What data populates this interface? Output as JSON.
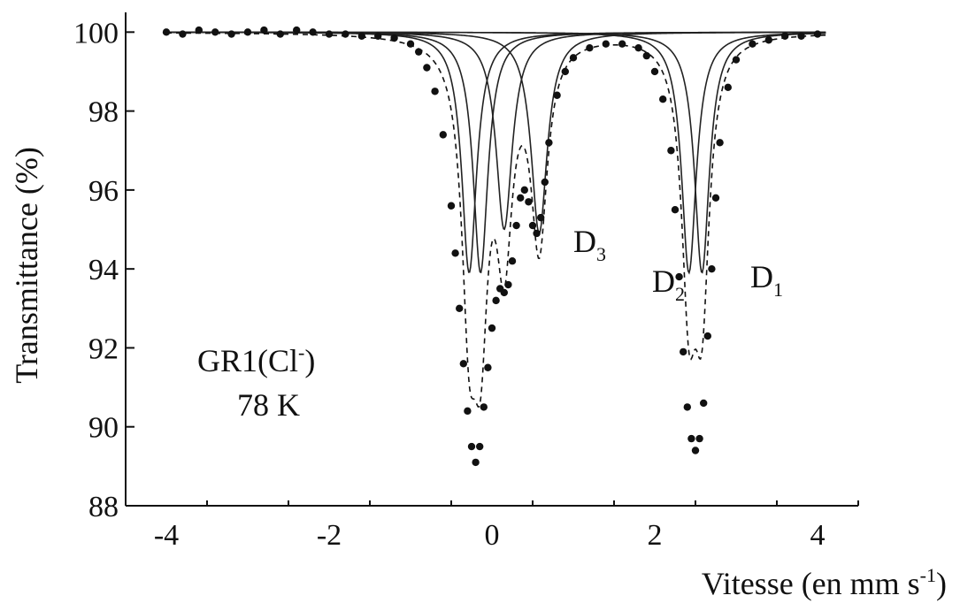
{
  "chart_data": {
    "type": "scatter",
    "xlabel_main": "Vitesse (en mm s",
    "xlabel_sup": "-1",
    "xlabel_close": ")",
    "ylabel": "Transmittance (%)",
    "xlim": [
      -4.5,
      4.5
    ],
    "ylim": [
      88,
      100.5
    ],
    "xticks": [
      -4,
      -2,
      0,
      2,
      4
    ],
    "yticks": [
      88,
      90,
      92,
      94,
      96,
      98,
      100
    ],
    "grid": false,
    "annotations": {
      "sample_main": "GR1(Cl",
      "sample_sup": "-",
      "sample_close": ")",
      "temperature": "78 K",
      "d1_main": "D",
      "d1_sub": "1",
      "d2_main": "D",
      "d2_sub": "2",
      "d3_main": "D",
      "d3_sub": "3"
    },
    "components": [
      {
        "label": "D1",
        "center": 2.58,
        "depth": 6.1,
        "hwhm": 0.11
      },
      {
        "label": "D2",
        "center": 2.42,
        "depth": 6.1,
        "hwhm": 0.11
      },
      {
        "label": "D1",
        "center": -0.14,
        "depth": 6.1,
        "hwhm": 0.11
      },
      {
        "label": "D2",
        "center": -0.28,
        "depth": 6.1,
        "hwhm": 0.11
      },
      {
        "label": "D3",
        "center": 0.15,
        "depth": 5.0,
        "hwhm": 0.12
      },
      {
        "label": "D3",
        "center": 0.58,
        "depth": 5.1,
        "hwhm": 0.12
      }
    ],
    "experimental_points": [
      [
        -4.0,
        100.0
      ],
      [
        -3.8,
        99.95
      ],
      [
        -3.6,
        100.05
      ],
      [
        -3.4,
        100.0
      ],
      [
        -3.2,
        99.95
      ],
      [
        -3.0,
        100.0
      ],
      [
        -2.8,
        100.05
      ],
      [
        -2.6,
        99.95
      ],
      [
        -2.4,
        100.05
      ],
      [
        -2.2,
        100.0
      ],
      [
        -2.0,
        99.95
      ],
      [
        -1.8,
        99.95
      ],
      [
        -1.6,
        99.9
      ],
      [
        -1.4,
        99.9
      ],
      [
        -1.2,
        99.85
      ],
      [
        -1.0,
        99.7
      ],
      [
        -0.9,
        99.5
      ],
      [
        -0.8,
        99.1
      ],
      [
        -0.7,
        98.5
      ],
      [
        -0.6,
        97.4
      ],
      [
        -0.5,
        95.6
      ],
      [
        -0.45,
        94.4
      ],
      [
        -0.4,
        93.0
      ],
      [
        -0.35,
        91.6
      ],
      [
        -0.3,
        90.4
      ],
      [
        -0.25,
        89.5
      ],
      [
        -0.2,
        89.1
      ],
      [
        -0.15,
        89.5
      ],
      [
        -0.1,
        90.5
      ],
      [
        -0.05,
        91.5
      ],
      [
        0.0,
        92.5
      ],
      [
        0.05,
        93.2
      ],
      [
        0.1,
        93.5
      ],
      [
        0.15,
        93.4
      ],
      [
        0.2,
        93.6
      ],
      [
        0.25,
        94.2
      ],
      [
        0.3,
        95.1
      ],
      [
        0.35,
        95.8
      ],
      [
        0.4,
        96.0
      ],
      [
        0.45,
        95.7
      ],
      [
        0.5,
        95.1
      ],
      [
        0.55,
        94.9
      ],
      [
        0.6,
        95.3
      ],
      [
        0.65,
        96.2
      ],
      [
        0.7,
        97.2
      ],
      [
        0.8,
        98.4
      ],
      [
        0.9,
        99.0
      ],
      [
        1.0,
        99.35
      ],
      [
        1.2,
        99.6
      ],
      [
        1.4,
        99.7
      ],
      [
        1.6,
        99.7
      ],
      [
        1.8,
        99.6
      ],
      [
        1.9,
        99.4
      ],
      [
        2.0,
        99.0
      ],
      [
        2.1,
        98.3
      ],
      [
        2.2,
        97.0
      ],
      [
        2.25,
        95.5
      ],
      [
        2.3,
        93.8
      ],
      [
        2.35,
        91.9
      ],
      [
        2.4,
        90.5
      ],
      [
        2.45,
        89.7
      ],
      [
        2.5,
        89.4
      ],
      [
        2.55,
        89.7
      ],
      [
        2.6,
        90.6
      ],
      [
        2.65,
        92.3
      ],
      [
        2.7,
        94.0
      ],
      [
        2.75,
        95.8
      ],
      [
        2.8,
        97.2
      ],
      [
        2.9,
        98.6
      ],
      [
        3.0,
        99.3
      ],
      [
        3.2,
        99.7
      ],
      [
        3.4,
        99.8
      ],
      [
        3.6,
        99.9
      ],
      [
        3.8,
        99.9
      ],
      [
        4.0,
        99.95
      ]
    ]
  }
}
